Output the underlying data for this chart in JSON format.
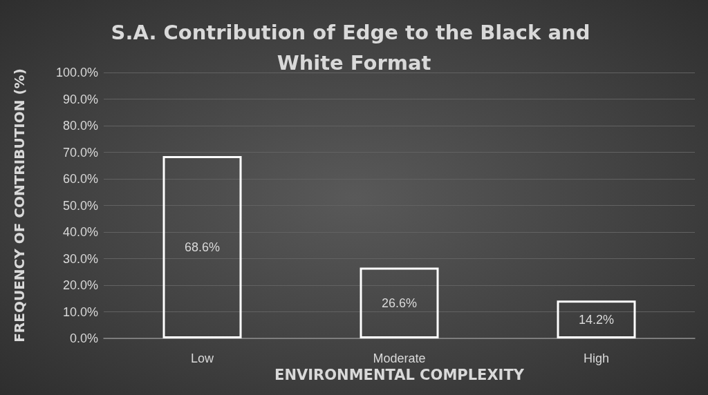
{
  "chart_data": {
    "type": "bar",
    "title": "S.A. Contribution of Edge to the Black and White Format",
    "xlabel": "ENVIRONMENTAL COMPLEXITY",
    "ylabel": "FREQUENCY OF CONTRIBUTION (%)",
    "categories": [
      "Low",
      "Moderate",
      "High"
    ],
    "values": [
      68.6,
      26.6,
      14.2
    ],
    "value_labels": [
      "68.6%",
      "26.6%",
      "14.2%"
    ],
    "color": "#ffffff",
    "ylim": [
      0,
      100
    ],
    "yticks": [
      {
        "value": 0,
        "label": "0.0%"
      },
      {
        "value": 10,
        "label": "10.0%"
      },
      {
        "value": 20,
        "label": "20.0%"
      },
      {
        "value": 30,
        "label": "30.0%"
      },
      {
        "value": 40,
        "label": "40.0%"
      },
      {
        "value": 50,
        "label": "50.0%"
      },
      {
        "value": 60,
        "label": "60.0%"
      },
      {
        "value": 70,
        "label": "70.0%"
      },
      {
        "value": 80,
        "label": "80.0%"
      },
      {
        "value": 90,
        "label": "90.0%"
      },
      {
        "value": 100,
        "label": "100.0%"
      }
    ],
    "grid": "y"
  }
}
